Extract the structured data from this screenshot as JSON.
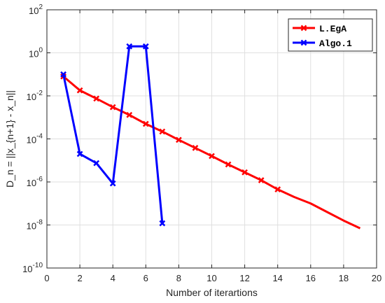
{
  "chart_data": {
    "type": "line",
    "title": "",
    "xlabel": "Number of iterartions",
    "ylabel": "D_n = ||x_{n+1} - x_n||",
    "yscale": "log",
    "xlim": [
      0,
      20
    ],
    "ylim": [
      1e-10,
      100
    ],
    "grid": true,
    "legend_position": "top-right",
    "x_ticks": [
      "0",
      "2",
      "4",
      "6",
      "8",
      "10",
      "12",
      "14",
      "16",
      "18",
      "20"
    ],
    "y_ticks": [
      {
        "base": "10",
        "exp": "-10"
      },
      {
        "base": "10",
        "exp": "-8"
      },
      {
        "base": "10",
        "exp": "-6"
      },
      {
        "base": "10",
        "exp": "-4"
      },
      {
        "base": "10",
        "exp": "-2"
      },
      {
        "base": "10",
        "exp": "0"
      },
      {
        "base": "10",
        "exp": "2"
      }
    ],
    "series": [
      {
        "name": "L.EgA",
        "color": "#ff0000",
        "x": [
          1,
          2,
          3,
          4,
          5,
          6,
          7,
          8,
          9,
          10,
          11,
          12,
          13,
          14,
          15,
          16,
          17,
          18,
          19
        ],
        "y": [
          0.08,
          0.018,
          0.0075,
          0.003,
          0.0013,
          0.0005,
          0.00022,
          9e-05,
          3.8e-05,
          1.6e-05,
          6.5e-06,
          2.8e-06,
          1.2e-06,
          4.5e-07,
          2e-07,
          1e-07,
          4e-08,
          1.6e-08,
          7e-09
        ],
        "markers": true,
        "marker_count": 14
      },
      {
        "name": "Algo.1",
        "color": "#0000ff",
        "x": [
          1,
          2,
          3,
          4,
          5,
          6,
          7
        ],
        "y": [
          0.1,
          2e-05,
          7.5e-06,
          8.5e-07,
          2,
          2,
          1.2e-08
        ],
        "markers": true,
        "marker_count": 7
      }
    ]
  }
}
